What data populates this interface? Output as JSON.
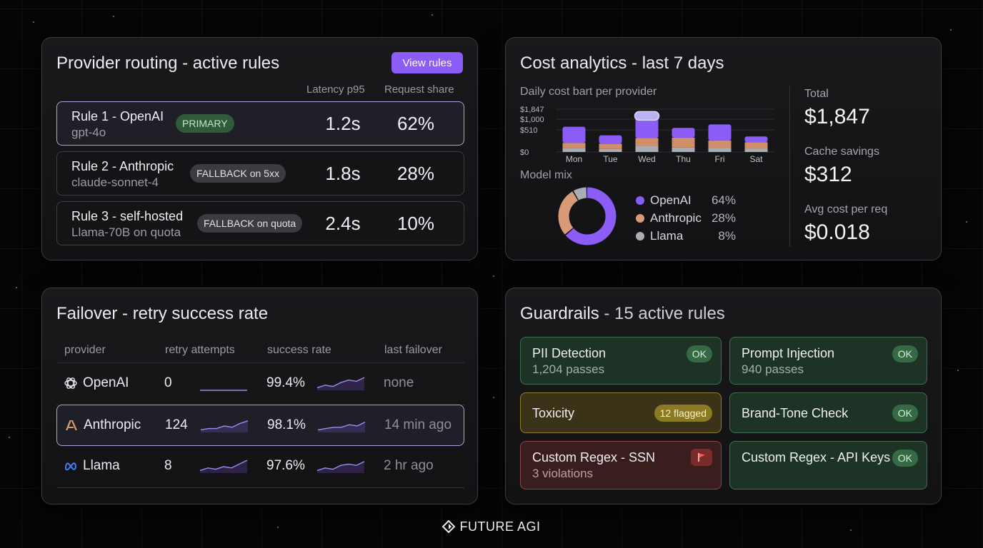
{
  "routing": {
    "title": "Provider routing - active rules",
    "view_button": "View rules",
    "col_latency": "Latency p95",
    "col_share": "Request share",
    "rules": [
      {
        "name": "Rule 1 - OpenAI",
        "model": "gpt-4o",
        "badge": "PRIMARY",
        "latency": "1.2s",
        "share": "62%"
      },
      {
        "name": "Rule 2 - Anthropic",
        "model": "claude-sonnet-4",
        "badge": "FALLBACK on 5xx",
        "latency": "1.8s",
        "share": "28%"
      },
      {
        "name": "Rule 3 - self-hosted",
        "model": "Llama-70B on quota",
        "badge": "FALLBACK on quota",
        "latency": "2.4s",
        "share": "10%"
      }
    ]
  },
  "cost": {
    "title": "Cost analytics - last 7 days",
    "bar_subtitle": "Daily cost bart per provider",
    "mix_subtitle": "Model mix",
    "stats": [
      {
        "label": "Total",
        "value": "$1,847"
      },
      {
        "label": "Cache savings",
        "value": "$312"
      },
      {
        "label": "Avg cost per req",
        "value": "$0.018"
      }
    ]
  },
  "chart_data": [
    {
      "type": "bar",
      "title": "Daily cost bart per provider",
      "categories": [
        "Mon",
        "Tue",
        "Wed",
        "Thu",
        "Fri",
        "Sat"
      ],
      "y_tick_labels": [
        "$1,847",
        "$1,000",
        "$510",
        "$0"
      ],
      "ylim": [
        0,
        1847
      ],
      "series": [
        {
          "name": "OpenAI",
          "color": "#8b5cf6",
          "values": [
            700,
            360,
            1050,
            420,
            690,
            250
          ]
        },
        {
          "name": "Anthropic",
          "color": "#d08f6a",
          "values": [
            230,
            230,
            340,
            430,
            320,
            280
          ]
        },
        {
          "name": "Llama",
          "color": "#a9aeb6",
          "values": [
            160,
            130,
            260,
            190,
            180,
            140
          ]
        }
      ]
    },
    {
      "type": "pie",
      "title": "Model mix",
      "categories": [
        "OpenAI",
        "Anthropic",
        "Llama"
      ],
      "values": [
        64,
        28,
        8
      ],
      "labels": [
        "64%",
        "28%",
        "8%"
      ],
      "colors": [
        "#8b5cf6",
        "#d99a77",
        "#a9aeb6"
      ]
    }
  ],
  "failover": {
    "title": "Failover - retry success rate",
    "headers": {
      "provider": "provider",
      "retry": "retry attempts",
      "rate": "success rate",
      "last": "last failover"
    },
    "rows": [
      {
        "provider": "OpenAI",
        "icon": "openai-icon",
        "retries": "0",
        "rate": "99.4%",
        "last": "none",
        "spark_retry": [
          0,
          0,
          0,
          0,
          0,
          0,
          0
        ],
        "spark_rate": [
          2,
          4,
          3,
          6,
          8,
          7,
          10
        ]
      },
      {
        "provider": "Anthropic",
        "icon": "anthropic-icon",
        "retries": "124",
        "rate": "98.1%",
        "last": "14 min ago",
        "spark_retry": [
          2,
          3,
          3,
          5,
          4,
          7,
          9
        ],
        "spark_rate": [
          2,
          3,
          4,
          4,
          6,
          5,
          8
        ]
      },
      {
        "provider": "Llama",
        "icon": "meta-icon",
        "retries": "8",
        "rate": "97.6%",
        "last": "2 hr ago",
        "spark_retry": [
          2,
          4,
          3,
          5,
          4,
          7,
          10
        ],
        "spark_rate": [
          2,
          4,
          3,
          6,
          7,
          6,
          9
        ]
      }
    ]
  },
  "guardrails": {
    "title_main": "Guardrails",
    "title_rest": " - 15 active rules",
    "tiles": [
      {
        "name": "PII Detection",
        "sub": "1,204 passes",
        "badge": "OK",
        "status": "ok"
      },
      {
        "name": "Prompt Injection",
        "sub": "940 passes",
        "badge": "OK",
        "status": "ok"
      },
      {
        "name": "Toxicity",
        "sub": "",
        "badge": "12 flagged",
        "status": "warn"
      },
      {
        "name": "Brand-Tone Check",
        "sub": "",
        "badge": "OK",
        "status": "ok"
      },
      {
        "name": "Custom Regex - SSN",
        "sub": "3 violations",
        "badge": "",
        "status": "err"
      },
      {
        "name": "Custom Regex - API Keys",
        "sub": "",
        "badge": "OK",
        "status": "ok"
      }
    ]
  },
  "brand": {
    "name": "FUTURE AGI"
  }
}
